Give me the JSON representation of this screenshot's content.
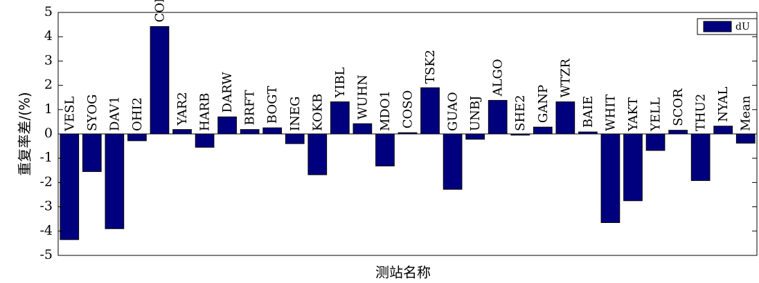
{
  "chart_data": {
    "type": "bar",
    "ylabel": "重复率差/(%)",
    "xlabel": "测站名称",
    "ylim": [
      -5,
      5
    ],
    "yticks": [
      5,
      4,
      3,
      2,
      1,
      0,
      -1,
      -2,
      -3,
      -4,
      -5
    ],
    "grid": false,
    "legend": {
      "position": "top-right",
      "entries": [
        "dU"
      ]
    },
    "bar_color": "#00007f",
    "categories": [
      "VESL",
      "SYOG",
      "DAV1",
      "OHI2",
      "CONZ",
      "YAR2",
      "HARB",
      "DARW",
      "BRFT",
      "BOGT",
      "INEG",
      "KOKB",
      "YIBL",
      "WUHN",
      "MDO1",
      "COSO",
      "TSK2",
      "GUAO",
      "UNBJ",
      "ALGO",
      "SHE2",
      "GANP",
      "WTZR",
      "BAIE",
      "WHIT",
      "YAKT",
      "YELL",
      "SCOR",
      "THU2",
      "NYAL",
      "Mean"
    ],
    "series": [
      {
        "name": "dU",
        "values": [
          -4.35,
          -1.55,
          -3.9,
          -0.28,
          4.42,
          0.18,
          -0.55,
          0.7,
          0.18,
          0.25,
          -0.4,
          -1.68,
          1.32,
          0.42,
          -1.32,
          0.05,
          1.9,
          -2.28,
          -0.22,
          1.38,
          -0.05,
          0.28,
          1.32,
          0.08,
          -3.65,
          -2.75,
          -0.68,
          0.15,
          -1.92,
          0.32,
          -0.38
        ]
      }
    ]
  }
}
